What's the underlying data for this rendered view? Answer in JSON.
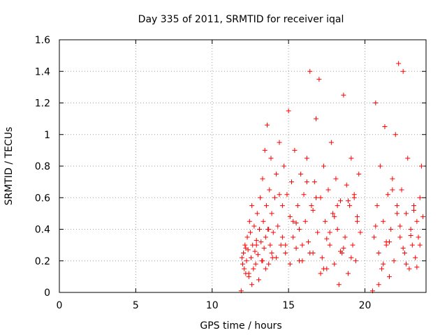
{
  "chart_data": {
    "type": "scatter",
    "title": "Day 335 of 2011, SRMTID for receiver iqal",
    "xlabel": "GPS time / hours",
    "ylabel": "SRMTID / TECUs",
    "xlim": [
      0,
      24
    ],
    "ylim": [
      0,
      1.6
    ],
    "xticks": [
      0,
      5,
      10,
      15,
      20
    ],
    "xtick_labels": [
      "0",
      "5",
      "10",
      "15",
      "20"
    ],
    "yticks": [
      0,
      0.2,
      0.4,
      0.6,
      0.8,
      1,
      1.2,
      1.4,
      1.6
    ],
    "ytick_labels": [
      "0",
      "0.2",
      "0.4",
      "0.6",
      "0.8",
      "1",
      "1.2",
      "1.4",
      "1.6"
    ],
    "grid": true,
    "legend": "none",
    "marker": "+",
    "marker_color": "#ff0000",
    "series": [
      {
        "name": "SRMTID",
        "x": [
          11.9,
          11.95,
          12.0,
          12.05,
          12.1,
          12.15,
          12.2,
          12.25,
          12.3,
          12.35,
          12.4,
          12.45,
          12.5,
          12.55,
          12.6,
          12.65,
          12.7,
          12.75,
          12.8,
          12.85,
          12.9,
          12.95,
          13.0,
          13.05,
          13.1,
          13.15,
          13.2,
          13.25,
          13.3,
          13.35,
          13.4,
          13.45,
          13.5,
          13.55,
          13.6,
          13.65,
          13.7,
          13.75,
          13.8,
          13.85,
          13.9,
          13.95,
          14.0,
          14.1,
          14.2,
          14.3,
          14.4,
          14.5,
          14.6,
          14.7,
          14.8,
          14.9,
          15.0,
          15.1,
          15.2,
          15.3,
          15.4,
          15.5,
          15.6,
          15.7,
          15.8,
          15.9,
          16.0,
          16.1,
          16.2,
          16.3,
          16.4,
          16.5,
          16.6,
          16.7,
          16.8,
          16.9,
          17.0,
          17.1,
          17.2,
          17.3,
          17.4,
          17.5,
          17.6,
          17.7,
          17.8,
          17.9,
          18.0,
          18.1,
          18.2,
          18.3,
          18.4,
          18.5,
          18.6,
          18.7,
          18.8,
          18.9,
          19.0,
          19.1,
          19.2,
          19.3,
          19.4,
          19.5,
          19.6,
          19.7,
          20.5,
          20.6,
          20.7,
          20.8,
          20.9,
          21.0,
          21.1,
          21.2,
          21.3,
          21.4,
          21.5,
          21.6,
          21.7,
          21.8,
          21.9,
          22.0,
          22.1,
          22.2,
          22.3,
          22.4,
          22.5,
          22.6,
          22.7,
          22.8,
          22.9,
          23.0,
          23.1,
          23.2,
          23.3,
          23.4,
          23.5,
          23.6,
          23.7,
          23.8,
          12.2,
          12.6,
          13.1,
          13.5,
          13.9,
          14.4,
          14.8,
          15.3,
          15.7,
          16.2,
          16.6,
          17.1,
          17.5,
          18.0,
          18.4,
          18.9,
          19.3,
          20.7,
          21.2,
          21.6,
          22.1,
          22.5,
          23.0,
          23.4,
          12.4,
          12.9,
          13.3,
          13.7,
          14.2,
          14.6,
          15.1,
          15.5,
          15.9,
          16.4,
          16.8,
          17.3,
          17.7,
          18.2,
          18.6,
          19.1,
          19.5,
          20.9,
          21.4,
          21.8,
          22.3,
          22.7,
          23.2,
          23.6
        ],
        "y": [
          0.01,
          0.22,
          0.18,
          0.25,
          0.15,
          0.3,
          0.12,
          0.2,
          0.35,
          0.27,
          0.1,
          0.45,
          0.38,
          0.22,
          0.55,
          0.3,
          0.15,
          0.42,
          0.26,
          0.18,
          0.33,
          0.5,
          0.24,
          0.08,
          0.4,
          0.6,
          0.32,
          0.2,
          0.72,
          0.45,
          0.28,
          0.9,
          0.35,
          0.55,
          1.06,
          0.4,
          0.18,
          0.65,
          0.3,
          0.85,
          0.5,
          0.22,
          0.38,
          0.6,
          0.75,
          0.42,
          0.95,
          0.3,
          0.55,
          0.8,
          0.25,
          0.62,
          1.15,
          0.48,
          0.7,
          0.35,
          0.9,
          0.28,
          0.55,
          0.4,
          0.75,
          0.2,
          0.62,
          0.45,
          0.85,
          0.32,
          1.4,
          0.55,
          0.25,
          0.7,
          1.1,
          0.38,
          1.35,
          0.6,
          0.22,
          0.8,
          0.45,
          0.15,
          0.65,
          0.3,
          0.95,
          0.5,
          0.18,
          0.72,
          0.4,
          0.05,
          0.58,
          0.25,
          1.25,
          0.35,
          0.68,
          0.12,
          0.55,
          0.85,
          0.3,
          0.62,
          0.2,
          0.45,
          0.75,
          0.38,
          0.01,
          0.35,
          1.2,
          0.55,
          0.25,
          0.8,
          0.15,
          0.45,
          1.05,
          0.3,
          0.62,
          0.1,
          0.4,
          0.72,
          0.2,
          1.0,
          0.55,
          1.45,
          0.35,
          0.65,
          1.4,
          0.25,
          0.5,
          0.85,
          0.15,
          0.4,
          0.3,
          0.55,
          0.22,
          0.45,
          0.35,
          0.6,
          0.8,
          0.48,
          0.28,
          0.05,
          0.4,
          0.15,
          0.25,
          0.62,
          0.3,
          0.45,
          0.2,
          0.7,
          0.52,
          0.12,
          0.34,
          0.48,
          0.26,
          0.58,
          0.6,
          0.42,
          0.18,
          0.32,
          0.5,
          0.28,
          0.36,
          0.16,
          0.12,
          0.3,
          0.2,
          0.4,
          0.22,
          0.35,
          0.18,
          0.44,
          0.3,
          0.25,
          0.6,
          0.15,
          0.38,
          0.55,
          0.28,
          0.22,
          0.48,
          0.05,
          0.32,
          0.65,
          0.42,
          0.18,
          0.52,
          0.3
        ]
      }
    ]
  }
}
